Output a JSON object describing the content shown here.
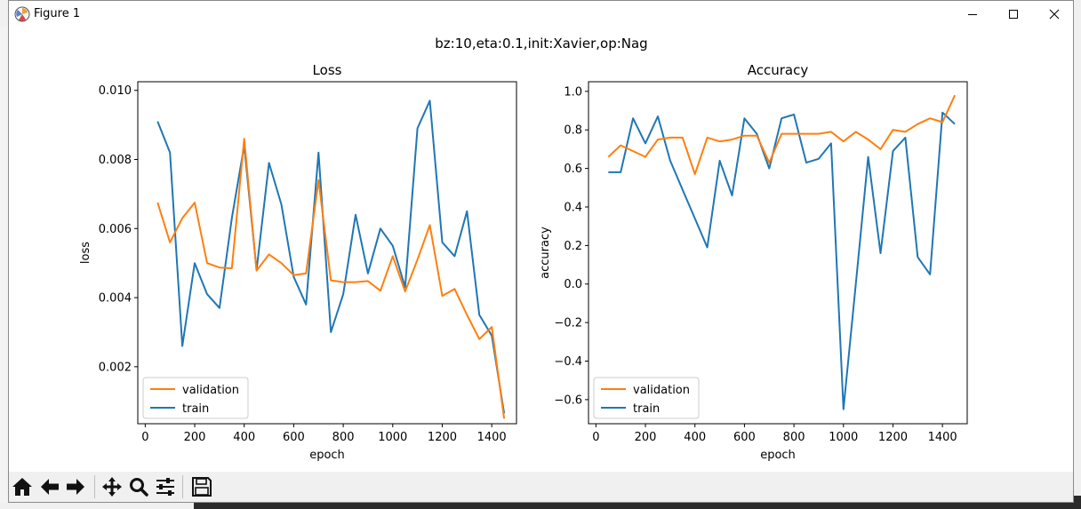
{
  "window": {
    "title": "Figure 1",
    "minimize_icon": "minimize-icon",
    "maximize_icon": "maximize-icon",
    "close_icon": "close-icon"
  },
  "figure": {
    "suptitle": "bz:10,eta:0.1,init:Xavier,op:Nag"
  },
  "colors": {
    "validation": "#ff7f0e",
    "train": "#1f77b4"
  },
  "toolbar": {
    "icons": [
      "home-icon",
      "back-icon",
      "forward-icon",
      "pan-icon",
      "zoom-icon",
      "configure-subplots-icon",
      "save-icon"
    ]
  },
  "chart_data": [
    {
      "type": "line",
      "title": "Loss",
      "xlabel": "epoch",
      "ylabel": "loss",
      "xlim": [
        -30,
        1500
      ],
      "ylim": [
        0.00035,
        0.01025
      ],
      "xticks": [
        0,
        200,
        400,
        600,
        800,
        1000,
        1200,
        1400
      ],
      "yticks": [
        0.002,
        0.004,
        0.006,
        0.008,
        0.01
      ],
      "ytick_labels": [
        "0.002",
        "0.004",
        "0.006",
        "0.008",
        "0.010"
      ],
      "legend": "lower-left",
      "x": [
        50,
        100,
        150,
        200,
        250,
        300,
        350,
        400,
        450,
        500,
        550,
        600,
        650,
        700,
        750,
        800,
        850,
        900,
        950,
        1000,
        1050,
        1100,
        1150,
        1200,
        1250,
        1300,
        1350,
        1400,
        1450
      ],
      "series": [
        {
          "name": "validation",
          "values": [
            0.00675,
            0.0056,
            0.0063,
            0.00675,
            0.005,
            0.00487,
            0.00485,
            0.0086,
            0.00478,
            0.00525,
            0.005,
            0.00465,
            0.0047,
            0.0074,
            0.0045,
            0.00445,
            0.00445,
            0.00448,
            0.0042,
            0.0052,
            0.00418,
            0.0051,
            0.0061,
            0.00405,
            0.00425,
            0.0035,
            0.0028,
            0.00315,
            0.0005
          ]
        },
        {
          "name": "train",
          "values": [
            0.0091,
            0.0082,
            0.0026,
            0.005,
            0.0041,
            0.0037,
            0.0063,
            0.0084,
            0.0048,
            0.0079,
            0.0067,
            0.0046,
            0.0038,
            0.0082,
            0.003,
            0.0041,
            0.0064,
            0.0047,
            0.006,
            0.0055,
            0.0043,
            0.0089,
            0.0097,
            0.0056,
            0.0052,
            0.0065,
            0.0035,
            0.0029,
            0.00065
          ]
        }
      ]
    },
    {
      "type": "line",
      "title": "Accuracy",
      "xlabel": "epoch",
      "ylabel": "accuracy",
      "xlim": [
        -30,
        1500
      ],
      "ylim": [
        -0.725,
        1.05
      ],
      "xticks": [
        0,
        200,
        400,
        600,
        800,
        1000,
        1200,
        1400
      ],
      "yticks": [
        -0.6,
        -0.4,
        -0.2,
        0.0,
        0.2,
        0.4,
        0.6,
        0.8,
        1.0
      ],
      "ytick_labels": [
        "−0.6",
        "−0.4",
        "−0.2",
        "0.0",
        "0.2",
        "0.4",
        "0.6",
        "0.8",
        "1.0"
      ],
      "legend": "lower-left",
      "x": [
        50,
        100,
        150,
        200,
        250,
        300,
        350,
        400,
        450,
        500,
        550,
        600,
        650,
        700,
        750,
        800,
        850,
        900,
        950,
        1000,
        1050,
        1100,
        1150,
        1200,
        1250,
        1300,
        1350,
        1400,
        1450
      ],
      "series": [
        {
          "name": "validation",
          "values": [
            0.66,
            0.72,
            0.69,
            0.66,
            0.75,
            0.76,
            0.76,
            0.57,
            0.76,
            0.74,
            0.75,
            0.77,
            0.77,
            0.63,
            0.78,
            0.78,
            0.78,
            0.78,
            0.79,
            0.74,
            0.79,
            0.75,
            0.7,
            0.8,
            0.79,
            0.83,
            0.86,
            0.84,
            0.98
          ]
        },
        {
          "name": "train",
          "values": [
            0.58,
            0.58,
            0.86,
            0.73,
            0.87,
            0.64,
            0.49,
            0.34,
            0.19,
            0.64,
            0.46,
            0.86,
            0.78,
            0.6,
            0.86,
            0.88,
            0.63,
            0.65,
            0.73,
            -0.65,
            0.0,
            0.66,
            0.16,
            0.69,
            0.76,
            0.14,
            0.05,
            0.89,
            0.83
          ]
        }
      ]
    }
  ]
}
